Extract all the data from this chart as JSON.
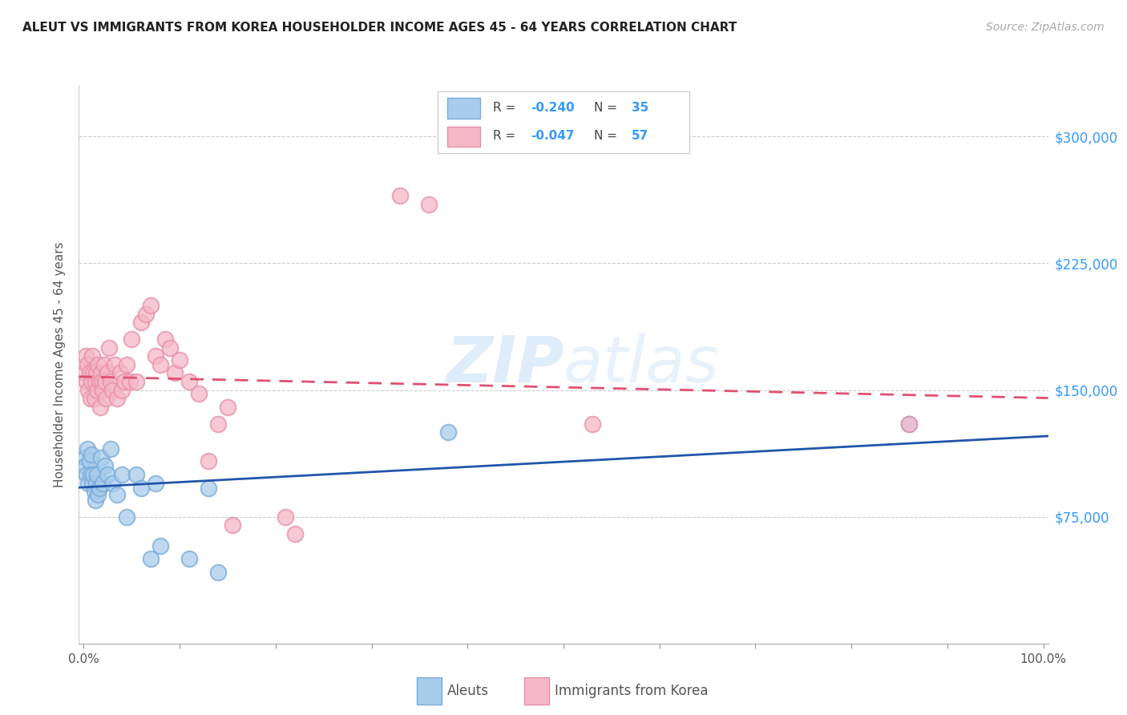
{
  "title": "ALEUT VS IMMIGRANTS FROM KOREA HOUSEHOLDER INCOME AGES 45 - 64 YEARS CORRELATION CHART",
  "source": "Source: ZipAtlas.com",
  "ylabel": "Householder Income Ages 45 - 64 years",
  "y_ticks": [
    75000,
    150000,
    225000,
    300000
  ],
  "y_tick_labels": [
    "$75,000",
    "$150,000",
    "$225,000",
    "$300,000"
  ],
  "y_min": 0,
  "y_max": 330000,
  "x_min": -0.005,
  "x_max": 1.005,
  "watermark": "ZIPatlas",
  "aleut_color": "#a8ccec",
  "aleut_color_edge": "#7aacd8",
  "korea_color": "#f5b8c8",
  "korea_color_edge": "#e890a8",
  "aleut_line_color": "#2255aa",
  "korea_line_color": "#e05070",
  "aleut_R": "-0.240",
  "aleut_N": "35",
  "korea_R": "-0.047",
  "korea_N": "57",
  "aleut_scatter_x": [
    0.001,
    0.002,
    0.003,
    0.004,
    0.005,
    0.006,
    0.007,
    0.008,
    0.009,
    0.01,
    0.011,
    0.012,
    0.013,
    0.014,
    0.015,
    0.016,
    0.018,
    0.02,
    0.022,
    0.025,
    0.028,
    0.03,
    0.035,
    0.04,
    0.045,
    0.055,
    0.06,
    0.07,
    0.075,
    0.08,
    0.11,
    0.13,
    0.14,
    0.38,
    0.86
  ],
  "aleut_scatter_y": [
    110000,
    105000,
    100000,
    115000,
    95000,
    108000,
    100000,
    112000,
    95000,
    100000,
    90000,
    85000,
    95000,
    100000,
    88000,
    92000,
    110000,
    95000,
    105000,
    100000,
    115000,
    95000,
    88000,
    100000,
    75000,
    100000,
    92000,
    50000,
    95000,
    58000,
    50000,
    92000,
    42000,
    125000,
    130000
  ],
  "korea_scatter_x": [
    0.001,
    0.002,
    0.003,
    0.004,
    0.005,
    0.006,
    0.007,
    0.008,
    0.009,
    0.01,
    0.011,
    0.012,
    0.013,
    0.014,
    0.015,
    0.016,
    0.017,
    0.018,
    0.019,
    0.02,
    0.021,
    0.022,
    0.023,
    0.025,
    0.026,
    0.028,
    0.03,
    0.032,
    0.035,
    0.038,
    0.04,
    0.042,
    0.045,
    0.048,
    0.05,
    0.055,
    0.06,
    0.065,
    0.07,
    0.075,
    0.08,
    0.085,
    0.09,
    0.095,
    0.1,
    0.11,
    0.12,
    0.13,
    0.14,
    0.15,
    0.155,
    0.21,
    0.22,
    0.33,
    0.36,
    0.53,
    0.86
  ],
  "korea_scatter_y": [
    160000,
    170000,
    155000,
    165000,
    150000,
    160000,
    145000,
    155000,
    170000,
    160000,
    145000,
    155000,
    160000,
    150000,
    165000,
    155000,
    140000,
    160000,
    155000,
    150000,
    165000,
    155000,
    145000,
    160000,
    175000,
    155000,
    150000,
    165000,
    145000,
    160000,
    150000,
    155000,
    165000,
    155000,
    180000,
    155000,
    190000,
    195000,
    200000,
    170000,
    165000,
    180000,
    175000,
    160000,
    168000,
    155000,
    148000,
    108000,
    130000,
    140000,
    70000,
    75000,
    65000,
    265000,
    260000,
    130000,
    130000
  ]
}
